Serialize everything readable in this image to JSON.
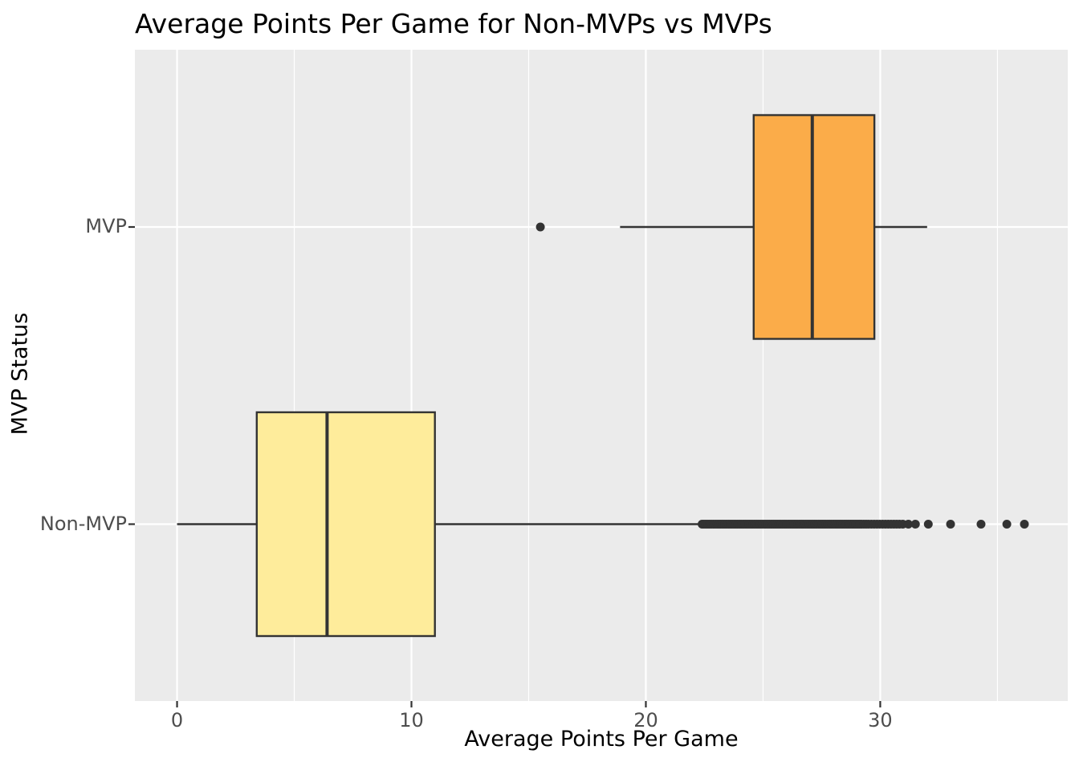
{
  "chart_data": {
    "type": "boxplot",
    "orientation": "horizontal",
    "title": "Average Points Per Game for Non-MVPs vs MVPs",
    "xlabel": "Average Points Per Game",
    "ylabel": "MVP Status",
    "xlim": [
      -1.8,
      38.0
    ],
    "xticks": [
      0,
      10,
      20,
      30
    ],
    "xtick_labels": [
      "0",
      "10",
      "20",
      "30"
    ],
    "x_minor_gridlines": [
      5,
      15,
      25,
      35
    ],
    "categories": [
      "MVP",
      "Non-MVP"
    ],
    "grid": "white-major-and-minor-on-gray-panel",
    "legend": "none",
    "colors": {
      "panel_bg": "#EBEBEB",
      "grid": "#FFFFFF",
      "line": "#333333",
      "tick_label": "#4D4D4D",
      "title_text": "#000000",
      "mvp_fill": "#FBAC49",
      "non_mvp_fill": "#FEEC9B"
    },
    "series": [
      {
        "category": "MVP",
        "whisker_low": 18.9,
        "q1": 24.6,
        "median": 27.1,
        "q3": 29.75,
        "whisker_high": 32.0,
        "fill": "#FBAC49",
        "outliers": [
          15.5
        ]
      },
      {
        "category": "Non-MVP",
        "whisker_low": 0.0,
        "q1": 3.4,
        "median": 6.4,
        "q3": 11.0,
        "whisker_high": 22.35,
        "fill": "#FEEC9B",
        "outliers": [
          22.4,
          22.48,
          22.56,
          22.64,
          22.72,
          22.8,
          22.88,
          22.96,
          23.04,
          23.12,
          23.2,
          23.28,
          23.36,
          23.44,
          23.52,
          23.6,
          23.68,
          23.76,
          23.84,
          23.92,
          24.0,
          24.08,
          24.16,
          24.24,
          24.32,
          24.4,
          24.48,
          24.56,
          24.64,
          24.72,
          24.8,
          24.88,
          24.96,
          25.04,
          25.12,
          25.2,
          25.28,
          25.36,
          25.44,
          25.52,
          25.6,
          25.68,
          25.76,
          25.84,
          25.92,
          26.0,
          26.08,
          26.16,
          26.24,
          26.32,
          26.4,
          26.48,
          26.56,
          26.64,
          26.72,
          26.8,
          26.88,
          26.96,
          27.04,
          27.12,
          27.2,
          27.28,
          27.36,
          27.44,
          27.52,
          27.6,
          27.68,
          27.76,
          27.84,
          27.92,
          28.0,
          28.08,
          28.16,
          28.24,
          28.32,
          28.4,
          28.48,
          28.56,
          28.64,
          28.72,
          28.8,
          28.88,
          28.96,
          29.04,
          29.12,
          29.2,
          29.3,
          29.4,
          29.5,
          29.62,
          29.74,
          29.86,
          29.98,
          30.1,
          30.22,
          30.34,
          30.46,
          30.58,
          30.7,
          30.82,
          30.96,
          31.2,
          31.5,
          32.05,
          33.0,
          34.3,
          35.4,
          36.15
        ]
      }
    ]
  }
}
